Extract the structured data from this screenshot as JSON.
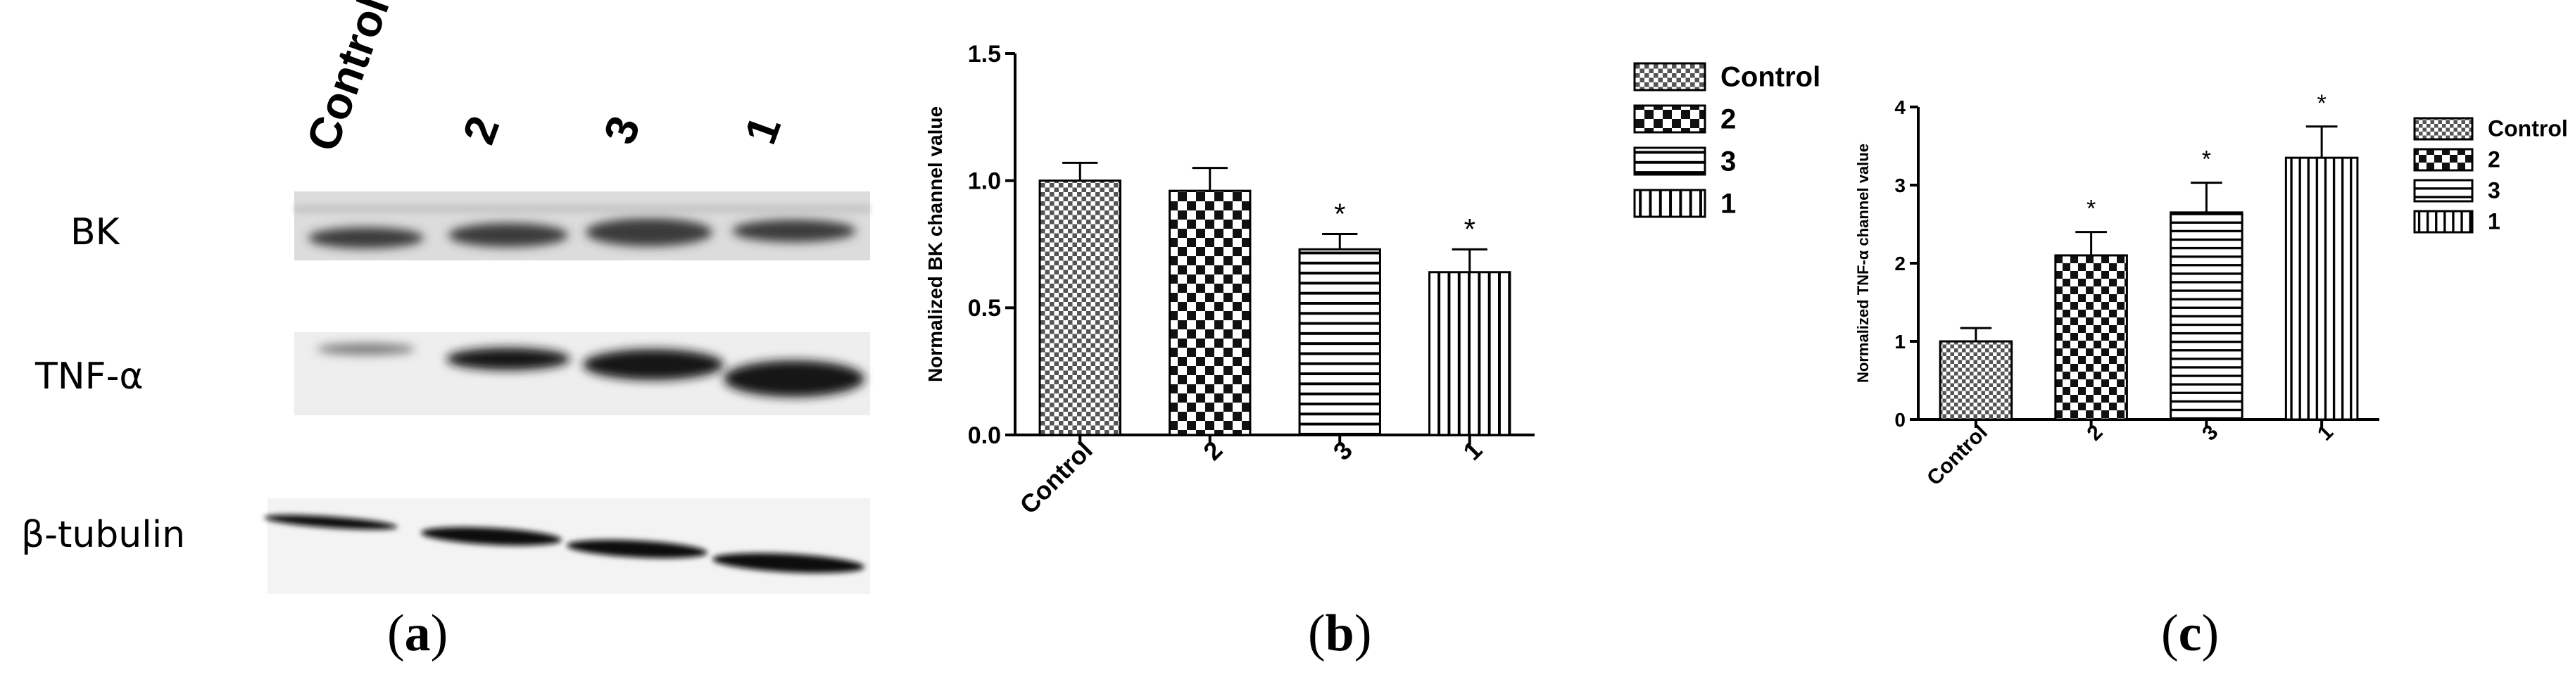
{
  "panel_a": {
    "label": "a",
    "lanes": [
      "Control",
      "2",
      "3",
      "1"
    ],
    "rows": [
      {
        "label": "BK"
      },
      {
        "label": "TNF-α"
      },
      {
        "label": "β-tubulin"
      }
    ]
  },
  "panel_b": {
    "label": "b"
  },
  "panel_c": {
    "label": "c"
  },
  "chart_data": [
    {
      "type": "bar",
      "panel": "b",
      "title": "",
      "xlabel": "",
      "ylabel": "Normalized BK channel value",
      "categories": [
        "Control",
        "2",
        "3",
        "1"
      ],
      "values": [
        1.0,
        0.96,
        0.73,
        0.64
      ],
      "errors": [
        0.07,
        0.09,
        0.06,
        0.09
      ],
      "significance": [
        "",
        "",
        "*",
        "*"
      ],
      "patterns": [
        "dots",
        "checker",
        "horizontal",
        "vertical"
      ],
      "ylim": [
        0,
        1.5
      ],
      "yticks": [
        "0.0",
        "0.5",
        "1.0",
        "1.5"
      ],
      "legend": [
        "Control",
        "2",
        "3",
        "1"
      ],
      "legend_position": "right",
      "grid": false
    },
    {
      "type": "bar",
      "panel": "c",
      "title": "",
      "xlabel": "",
      "ylabel": "Normalized TNF-α channel value",
      "categories": [
        "Control",
        "2",
        "3",
        "1"
      ],
      "values": [
        1.0,
        2.1,
        2.65,
        3.35
      ],
      "errors": [
        0.17,
        0.3,
        0.38,
        0.4
      ],
      "significance": [
        "",
        "*",
        "*",
        "*"
      ],
      "patterns": [
        "dots",
        "checker",
        "horizontal",
        "vertical"
      ],
      "ylim": [
        0,
        4
      ],
      "yticks": [
        "0",
        "1",
        "2",
        "3",
        "4"
      ],
      "legend": [
        "Control",
        "2",
        "3",
        "1"
      ],
      "legend_position": "right",
      "grid": false
    }
  ]
}
